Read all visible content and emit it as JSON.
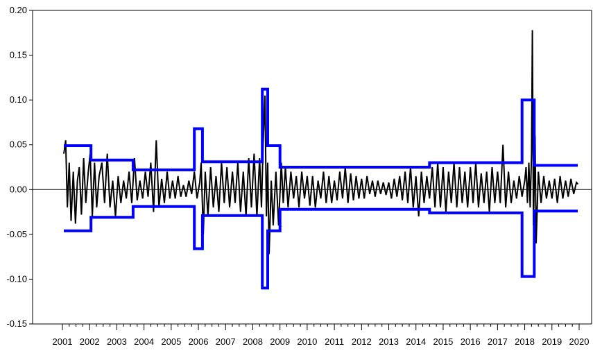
{
  "chart_data": {
    "type": "line",
    "title": "",
    "xlabel": "",
    "ylabel": "",
    "ylim": [
      -0.15,
      0.2
    ],
    "xlim": [
      2001,
      2020
    ],
    "y_ticks": [
      0.2,
      0.15,
      0.1,
      0.05,
      0.0,
      -0.05,
      -0.1,
      -0.15
    ],
    "y_tick_labels": [
      "0.20",
      "0.15",
      "0.10",
      "0.05",
      "0.00",
      "-0.05",
      "-0.10",
      "-0.15"
    ],
    "x_tick_labels": [
      "2001",
      "2002",
      "2003",
      "2004",
      "2005",
      "2006",
      "2007",
      "2008",
      "2009",
      "2010",
      "2011",
      "2012",
      "2013",
      "2014",
      "2015",
      "2016",
      "2017",
      "2018",
      "2019",
      "2020"
    ],
    "grid": false,
    "zero_line": true,
    "colors": {
      "series": "#000000",
      "bands": "#0000ff",
      "axis": "#000000"
    },
    "series": [
      {
        "values": [
          [
            2001.05,
            0.04
          ],
          [
            2001.12,
            0.055
          ],
          [
            2001.18,
            -0.02
          ],
          [
            2001.25,
            0.03
          ],
          [
            2001.32,
            -0.035
          ],
          [
            2001.4,
            0.02
          ],
          [
            2001.48,
            -0.038
          ],
          [
            2001.55,
            0.01
          ],
          [
            2001.62,
            0.025
          ],
          [
            2001.7,
            -0.028
          ],
          [
            2001.78,
            0.035
          ],
          [
            2001.86,
            -0.015
          ],
          [
            2001.95,
            0.02
          ],
          [
            2002.02,
            0.04
          ],
          [
            2002.1,
            -0.03
          ],
          [
            2002.18,
            0.03
          ],
          [
            2002.26,
            -0.02
          ],
          [
            2002.35,
            0.015
          ],
          [
            2002.45,
            0.03
          ],
          [
            2002.55,
            -0.015
          ],
          [
            2002.65,
            0.04
          ],
          [
            2002.75,
            -0.02
          ],
          [
            2002.85,
            0.01
          ],
          [
            2002.95,
            -0.03
          ],
          [
            2003.05,
            0.015
          ],
          [
            2003.15,
            -0.015
          ],
          [
            2003.25,
            0.01
          ],
          [
            2003.35,
            -0.01
          ],
          [
            2003.45,
            0.02
          ],
          [
            2003.55,
            -0.015
          ],
          [
            2003.65,
            0.035
          ],
          [
            2003.75,
            -0.012
          ],
          [
            2003.85,
            0.01
          ],
          [
            2003.95,
            -0.01
          ],
          [
            2004.05,
            0.02
          ],
          [
            2004.15,
            -0.008
          ],
          [
            2004.25,
            0.03
          ],
          [
            2004.35,
            -0.025
          ],
          [
            2004.45,
            0.055
          ],
          [
            2004.55,
            -0.02
          ],
          [
            2004.65,
            0.012
          ],
          [
            2004.75,
            -0.015
          ],
          [
            2004.85,
            0.02
          ],
          [
            2004.95,
            -0.01
          ],
          [
            2005.05,
            0.01
          ],
          [
            2005.15,
            -0.01
          ],
          [
            2005.25,
            0.015
          ],
          [
            2005.35,
            -0.008
          ],
          [
            2005.45,
            0.005
          ],
          [
            2005.55,
            -0.008
          ],
          [
            2005.65,
            0.01
          ],
          [
            2005.75,
            -0.005
          ],
          [
            2005.85,
            0.02
          ],
          [
            2005.95,
            -0.01
          ],
          [
            2006.05,
            0.008
          ],
          [
            2006.1,
            0.03
          ],
          [
            2006.18,
            -0.05
          ],
          [
            2006.25,
            0.02
          ],
          [
            2006.35,
            -0.03
          ],
          [
            2006.45,
            0.025
          ],
          [
            2006.55,
            -0.02
          ],
          [
            2006.65,
            0.015
          ],
          [
            2006.75,
            -0.025
          ],
          [
            2006.85,
            0.03
          ],
          [
            2006.95,
            -0.015
          ],
          [
            2007.05,
            0.025
          ],
          [
            2007.15,
            -0.02
          ],
          [
            2007.25,
            0.02
          ],
          [
            2007.35,
            -0.015
          ],
          [
            2007.45,
            0.03
          ],
          [
            2007.55,
            -0.025
          ],
          [
            2007.65,
            0.02
          ],
          [
            2007.75,
            -0.03
          ],
          [
            2007.85,
            0.035
          ],
          [
            2007.95,
            -0.02
          ],
          [
            2008.05,
            0.04
          ],
          [
            2008.15,
            -0.03
          ],
          [
            2008.25,
            0.035
          ],
          [
            2008.32,
            -0.02
          ],
          [
            2008.38,
            0.05
          ],
          [
            2008.45,
            0.105
          ],
          [
            2008.5,
            -0.03
          ],
          [
            2008.55,
            0.03
          ],
          [
            2008.6,
            -0.072
          ],
          [
            2008.68,
            0.01
          ],
          [
            2008.75,
            -0.04
          ],
          [
            2008.85,
            0.02
          ],
          [
            2008.95,
            -0.04
          ],
          [
            2009.05,
            0.03
          ],
          [
            2009.12,
            -0.015
          ],
          [
            2009.2,
            0.025
          ],
          [
            2009.3,
            -0.02
          ],
          [
            2009.4,
            0.02
          ],
          [
            2009.5,
            -0.01
          ],
          [
            2009.6,
            0.015
          ],
          [
            2009.7,
            -0.02
          ],
          [
            2009.8,
            0.02
          ],
          [
            2009.9,
            -0.01
          ],
          [
            2010.0,
            0.015
          ],
          [
            2010.1,
            -0.018
          ],
          [
            2010.2,
            0.015
          ],
          [
            2010.3,
            -0.02
          ],
          [
            2010.4,
            0.01
          ],
          [
            2010.5,
            -0.01
          ],
          [
            2010.6,
            0.02
          ],
          [
            2010.7,
            -0.015
          ],
          [
            2010.8,
            0.015
          ],
          [
            2010.9,
            -0.015
          ],
          [
            2011.0,
            0.01
          ],
          [
            2011.1,
            -0.012
          ],
          [
            2011.2,
            0.02
          ],
          [
            2011.3,
            -0.01
          ],
          [
            2011.4,
            0.025
          ],
          [
            2011.5,
            -0.015
          ],
          [
            2011.6,
            0.018
          ],
          [
            2011.7,
            -0.012
          ],
          [
            2011.8,
            0.015
          ],
          [
            2011.9,
            -0.01
          ],
          [
            2012.0,
            0.012
          ],
          [
            2012.1,
            -0.01
          ],
          [
            2012.2,
            0.015
          ],
          [
            2012.3,
            -0.005
          ],
          [
            2012.4,
            0.01
          ],
          [
            2012.5,
            -0.008
          ],
          [
            2012.6,
            0.01
          ],
          [
            2012.7,
            -0.005
          ],
          [
            2012.8,
            0.008
          ],
          [
            2012.9,
            -0.006
          ],
          [
            2013.0,
            0.008
          ],
          [
            2013.1,
            -0.01
          ],
          [
            2013.2,
            0.012
          ],
          [
            2013.3,
            -0.008
          ],
          [
            2013.4,
            0.015
          ],
          [
            2013.5,
            -0.012
          ],
          [
            2013.6,
            0.02
          ],
          [
            2013.7,
            -0.015
          ],
          [
            2013.8,
            0.025
          ],
          [
            2013.9,
            -0.02
          ],
          [
            2014.0,
            0.015
          ],
          [
            2014.1,
            -0.03
          ],
          [
            2014.2,
            0.02
          ],
          [
            2014.3,
            -0.015
          ],
          [
            2014.4,
            0.015
          ],
          [
            2014.5,
            -0.01
          ],
          [
            2014.6,
            0.025
          ],
          [
            2014.7,
            -0.02
          ],
          [
            2014.8,
            0.03
          ],
          [
            2014.9,
            -0.02
          ],
          [
            2015.0,
            0.025
          ],
          [
            2015.1,
            -0.025
          ],
          [
            2015.2,
            0.02
          ],
          [
            2015.3,
            -0.015
          ],
          [
            2015.4,
            0.03
          ],
          [
            2015.5,
            -0.02
          ],
          [
            2015.6,
            0.025
          ],
          [
            2015.7,
            -0.015
          ],
          [
            2015.8,
            0.02
          ],
          [
            2015.9,
            -0.02
          ],
          [
            2016.0,
            0.025
          ],
          [
            2016.1,
            -0.015
          ],
          [
            2016.2,
            0.03
          ],
          [
            2016.3,
            -0.02
          ],
          [
            2016.4,
            0.018
          ],
          [
            2016.5,
            -0.015
          ],
          [
            2016.6,
            0.02
          ],
          [
            2016.7,
            -0.025
          ],
          [
            2016.8,
            0.025
          ],
          [
            2016.9,
            -0.015
          ],
          [
            2017.0,
            0.02
          ],
          [
            2017.1,
            -0.015
          ],
          [
            2017.2,
            0.05
          ],
          [
            2017.3,
            -0.02
          ],
          [
            2017.4,
            0.02
          ],
          [
            2017.5,
            -0.015
          ],
          [
            2017.6,
            0.01
          ],
          [
            2017.7,
            -0.01
          ],
          [
            2017.8,
            0.015
          ],
          [
            2017.9,
            -0.008
          ],
          [
            2018.0,
            0.01
          ],
          [
            2018.05,
            0.025
          ],
          [
            2018.1,
            -0.015
          ],
          [
            2018.15,
            0.03
          ],
          [
            2018.2,
            -0.02
          ],
          [
            2018.25,
            0.04
          ],
          [
            2018.28,
            0.178
          ],
          [
            2018.32,
            -0.04
          ],
          [
            2018.38,
            0.06
          ],
          [
            2018.42,
            -0.06
          ],
          [
            2018.5,
            0.02
          ],
          [
            2018.6,
            -0.015
          ],
          [
            2018.7,
            0.015
          ],
          [
            2018.8,
            -0.01
          ],
          [
            2018.9,
            0.01
          ],
          [
            2019.0,
            -0.01
          ],
          [
            2019.1,
            0.012
          ],
          [
            2019.2,
            -0.015
          ],
          [
            2019.3,
            0.015
          ],
          [
            2019.4,
            -0.01
          ],
          [
            2019.5,
            0.01
          ],
          [
            2019.6,
            -0.008
          ],
          [
            2019.7,
            0.012
          ],
          [
            2019.8,
            -0.005
          ],
          [
            2019.9,
            0.008
          ],
          [
            2019.96,
            0.006
          ]
        ]
      },
      {
        "values": [
          [
            2001.05,
            0.049
          ],
          [
            2002.05,
            0.049
          ],
          [
            2002.05,
            0.033
          ],
          [
            2003.6,
            0.033
          ],
          [
            2003.6,
            0.022
          ],
          [
            2005.85,
            0.022
          ],
          [
            2005.85,
            0.068
          ],
          [
            2006.15,
            0.068
          ],
          [
            2006.15,
            0.031
          ],
          [
            2008.35,
            0.031
          ],
          [
            2008.35,
            0.112
          ],
          [
            2008.55,
            0.112
          ],
          [
            2008.55,
            0.049
          ],
          [
            2009.0,
            0.049
          ],
          [
            2009.0,
            0.025
          ],
          [
            2014.5,
            0.025
          ],
          [
            2014.5,
            0.03
          ],
          [
            2017.9,
            0.03
          ],
          [
            2017.9,
            0.1
          ],
          [
            2018.35,
            0.1
          ],
          [
            2018.35,
            0.027
          ],
          [
            2019.95,
            0.027
          ]
        ]
      },
      {
        "values": [
          [
            2001.05,
            -0.046
          ],
          [
            2002.05,
            -0.046
          ],
          [
            2002.05,
            -0.031
          ],
          [
            2003.6,
            -0.031
          ],
          [
            2003.6,
            -0.019
          ],
          [
            2005.85,
            -0.019
          ],
          [
            2005.85,
            -0.066
          ],
          [
            2006.15,
            -0.066
          ],
          [
            2006.15,
            -0.029
          ],
          [
            2008.35,
            -0.029
          ],
          [
            2008.35,
            -0.11
          ],
          [
            2008.55,
            -0.11
          ],
          [
            2008.55,
            -0.046
          ],
          [
            2009.0,
            -0.046
          ],
          [
            2009.0,
            -0.022
          ],
          [
            2014.5,
            -0.022
          ],
          [
            2014.5,
            -0.026
          ],
          [
            2017.9,
            -0.026
          ],
          [
            2017.9,
            -0.097
          ],
          [
            2018.35,
            -0.097
          ],
          [
            2018.35,
            -0.024
          ],
          [
            2019.95,
            -0.024
          ]
        ]
      }
    ]
  }
}
